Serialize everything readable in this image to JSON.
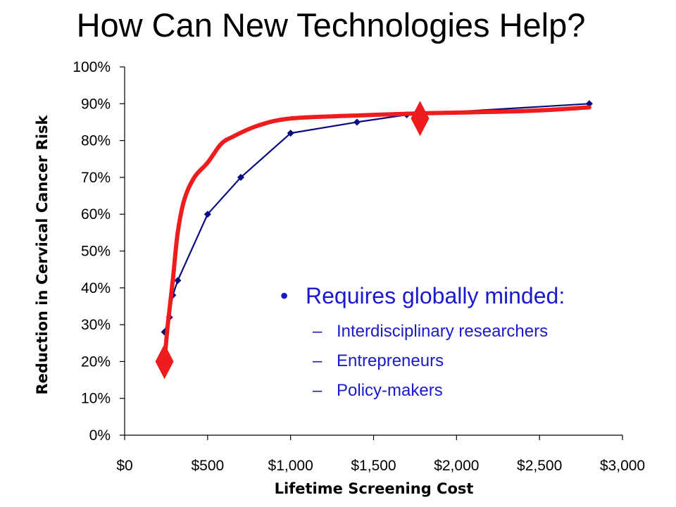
{
  "slide": {
    "title": "How Can New Technologies Help?"
  },
  "bullets": {
    "main": "Requires globally minded:",
    "sub": [
      "Interdisciplinary researchers",
      "Entrepreneurs",
      "Policy-makers"
    ]
  },
  "chart_data": {
    "type": "line",
    "title": "",
    "xlabel": "Lifetime Screening Cost",
    "ylabel": "Reduction in Cervical Cancer Risk",
    "xlim": [
      0,
      3000
    ],
    "ylim": [
      0,
      100
    ],
    "x_ticks": [
      "$0",
      "$500",
      "$1,000",
      "$1,500",
      "$2,000",
      "$2,500",
      "$3,000"
    ],
    "y_ticks": [
      "0%",
      "10%",
      "20%",
      "30%",
      "40%",
      "50%",
      "60%",
      "70%",
      "80%",
      "90%",
      "100%"
    ],
    "grid": false,
    "legend": "none",
    "series": [
      {
        "color": "#0b0b80",
        "marker": "diamond",
        "points": [
          [
            240,
            28
          ],
          [
            270,
            32
          ],
          [
            290,
            38
          ],
          [
            320,
            42
          ],
          [
            500,
            60
          ],
          [
            700,
            70
          ],
          [
            1000,
            82
          ],
          [
            1400,
            85
          ],
          [
            1700,
            87
          ],
          [
            2800,
            90
          ]
        ]
      },
      {
        "color": "#ee1c1c",
        "marker": "none",
        "points": [
          [
            240,
            20
          ],
          [
            260,
            30
          ],
          [
            290,
            42
          ],
          [
            320,
            55
          ],
          [
            360,
            64
          ],
          [
            420,
            70
          ],
          [
            500,
            74
          ],
          [
            580,
            79
          ],
          [
            650,
            81
          ],
          [
            800,
            84
          ],
          [
            1000,
            86
          ],
          [
            1400,
            86.8
          ],
          [
            1800,
            87.4
          ],
          [
            2400,
            88
          ],
          [
            2800,
            89
          ]
        ]
      }
    ],
    "annotations": [
      {
        "shape": "diamond",
        "color": "#ee1c1c",
        "x": 240,
        "y": 20
      },
      {
        "shape": "diamond",
        "color": "#ee1c1c",
        "x": 1780,
        "y": 86
      }
    ]
  }
}
